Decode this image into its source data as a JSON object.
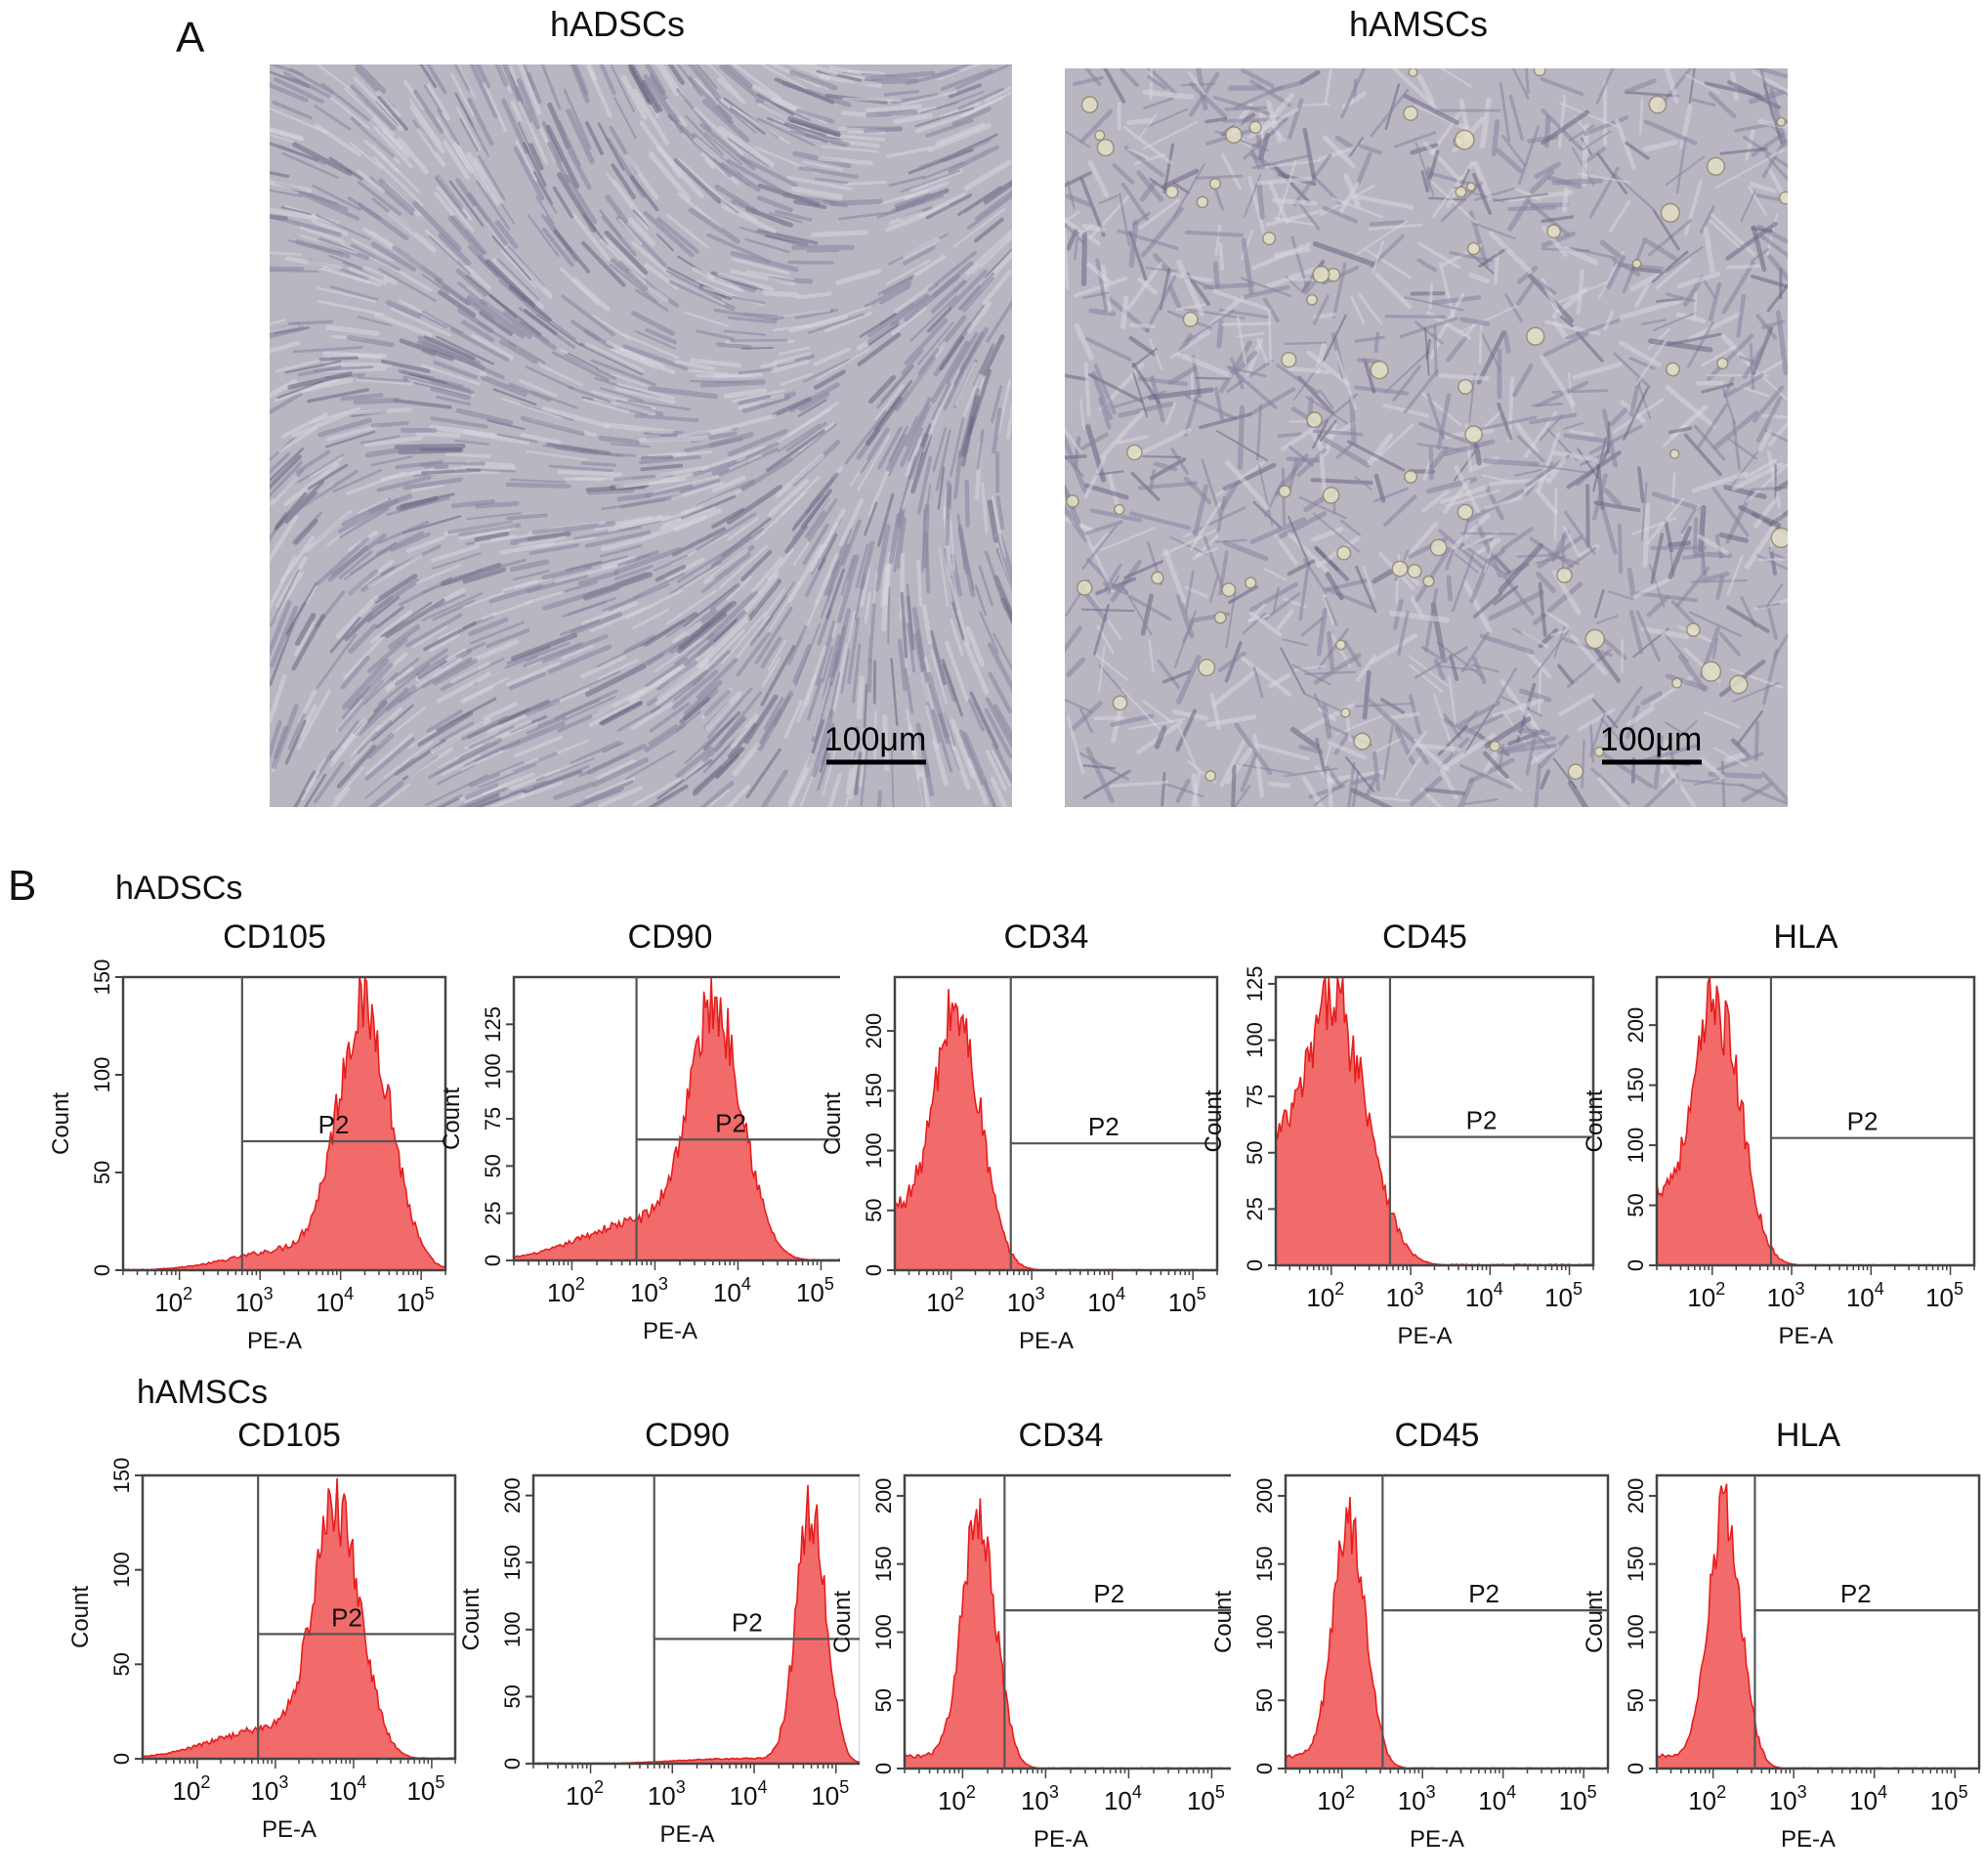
{
  "figure": {
    "panel_a_label": "A",
    "panel_b_label": "B"
  },
  "micrographs": [
    {
      "title": "hADSCs",
      "scale_bar": "100μm",
      "texture": "aligned"
    },
    {
      "title": "hAMSCs",
      "scale_bar": "100μm",
      "texture": "scattered"
    }
  ],
  "rows": [
    {
      "label": "hADSCs"
    },
    {
      "label": "hAMSCs"
    }
  ],
  "colors": {
    "histogram_fill": "#f26b6b",
    "histogram_edge": "#e61e1e",
    "axis": "#444444",
    "gate": "#555555"
  },
  "chart_data": [
    {
      "type": "area",
      "row": "hADSCs",
      "title": "CD105",
      "xlabel": "PE-A",
      "ylabel": "Count",
      "x_scale": "log",
      "xlim": [
        20,
        200000
      ],
      "ylim": [
        0,
        150
      ],
      "yticks": [
        0,
        50,
        100,
        150
      ],
      "xticks": [
        "10^2",
        "10^3",
        "10^4",
        "10^5"
      ],
      "gate_label": "P2",
      "gate_x": 600,
      "gate_y": 66,
      "peak_log": 4.3,
      "peak_height": 143,
      "spread": 0.33,
      "tail": 0.08
    },
    {
      "type": "area",
      "row": "hADSCs",
      "title": "CD90",
      "xlabel": "PE-A",
      "ylabel": "Count",
      "x_scale": "log",
      "xlim": [
        20,
        200000
      ],
      "ylim": [
        0,
        150
      ],
      "yticks": [
        0,
        25,
        50,
        75,
        100,
        125
      ],
      "xticks": [
        "10^2",
        "10^3",
        "10^4",
        "10^5"
      ],
      "gate_label": "P2",
      "gate_x": 600,
      "gate_y": 64,
      "peak_log": 3.75,
      "peak_height": 140,
      "spread": 0.32,
      "tail": 0.16
    },
    {
      "type": "area",
      "row": "hADSCs",
      "title": "CD34",
      "xlabel": "PE-A",
      "ylabel": "Count",
      "x_scale": "log",
      "xlim": [
        20,
        200000
      ],
      "ylim": [
        0,
        245
      ],
      "yticks": [
        0,
        50,
        100,
        150,
        200
      ],
      "xticks": [
        "10^2",
        "10^3",
        "10^4",
        "10^5"
      ],
      "gate_label": "P2",
      "gate_x": 550,
      "gate_y": 106,
      "peak_log": 2.1,
      "peak_height": 220,
      "spread": 0.28,
      "tail": 0.25
    },
    {
      "type": "area",
      "row": "hADSCs",
      "title": "CD45",
      "xlabel": "PE-A",
      "ylabel": "Count",
      "x_scale": "log",
      "xlim": [
        20,
        200000
      ],
      "ylim": [
        0,
        128
      ],
      "yticks": [
        0,
        25,
        50,
        75,
        100,
        125
      ],
      "xticks": [
        "10^2",
        "10^3",
        "10^4",
        "10^5"
      ],
      "gate_label": "P2",
      "gate_x": 550,
      "gate_y": 57,
      "peak_log": 2.15,
      "peak_height": 110,
      "spread": 0.36,
      "tail": 0.5
    },
    {
      "type": "area",
      "row": "hADSCs",
      "title": "HLA",
      "xlabel": "PE-A",
      "ylabel": "Count",
      "x_scale": "log",
      "xlim": [
        20,
        200000
      ],
      "ylim": [
        0,
        240
      ],
      "yticks": [
        0,
        50,
        100,
        150,
        200
      ],
      "xticks": [
        "10^2",
        "10^3",
        "10^4",
        "10^5"
      ],
      "gate_label": "P2",
      "gate_x": 550,
      "gate_y": 106,
      "peak_log": 2.1,
      "peak_height": 220,
      "spread": 0.28,
      "tail": 0.3
    },
    {
      "type": "area",
      "row": "hAMSCs",
      "title": "CD105",
      "xlabel": "PE-A",
      "ylabel": "Count",
      "x_scale": "log",
      "xlim": [
        20,
        200000
      ],
      "ylim": [
        0,
        150
      ],
      "yticks": [
        0,
        50,
        100,
        150
      ],
      "xticks": [
        "10^2",
        "10^3",
        "10^4",
        "10^5"
      ],
      "gate_label": "P2",
      "gate_x": 600,
      "gate_y": 66,
      "peak_log": 3.8,
      "peak_height": 140,
      "spread": 0.3,
      "tail": 0.12
    },
    {
      "type": "area",
      "row": "hAMSCs",
      "title": "CD90",
      "xlabel": "PE-A",
      "ylabel": "Count",
      "x_scale": "log",
      "xlim": [
        20,
        200000
      ],
      "ylim": [
        0,
        215
      ],
      "yticks": [
        0,
        50,
        100,
        150,
        200
      ],
      "xticks": [
        "10^2",
        "10^3",
        "10^4",
        "10^5"
      ],
      "gate_label": "P2",
      "gate_x": 600,
      "gate_y": 93,
      "peak_log": 4.7,
      "peak_height": 205,
      "spread": 0.18,
      "tail": 0.02
    },
    {
      "type": "area",
      "row": "hAMSCs",
      "title": "CD34",
      "xlabel": "PE-A",
      "ylabel": "Count",
      "x_scale": "log",
      "xlim": [
        20,
        200000
      ],
      "ylim": [
        0,
        215
      ],
      "yticks": [
        0,
        50,
        100,
        150,
        200
      ],
      "xticks": [
        "10^2",
        "10^3",
        "10^4",
        "10^5"
      ],
      "gate_label": "P2",
      "gate_x": 320,
      "gate_y": 116,
      "peak_log": 2.2,
      "peak_height": 200,
      "spread": 0.2,
      "tail": 0.05
    },
    {
      "type": "area",
      "row": "hAMSCs",
      "title": "CD45",
      "xlabel": "PE-A",
      "ylabel": "Count",
      "x_scale": "log",
      "xlim": [
        20,
        200000
      ],
      "ylim": [
        0,
        215
      ],
      "yticks": [
        0,
        50,
        100,
        150,
        200
      ],
      "xticks": [
        "10^2",
        "10^3",
        "10^4",
        "10^5"
      ],
      "gate_label": "P2",
      "gate_x": 320,
      "gate_y": 116,
      "peak_log": 2.1,
      "peak_height": 195,
      "spread": 0.2,
      "tail": 0.05
    },
    {
      "type": "area",
      "row": "hAMSCs",
      "title": "HLA",
      "xlabel": "PE-A",
      "ylabel": "Count",
      "x_scale": "log",
      "xlim": [
        20,
        200000
      ],
      "ylim": [
        0,
        215
      ],
      "yticks": [
        0,
        50,
        100,
        150,
        200
      ],
      "xticks": [
        "10^2",
        "10^3",
        "10^4",
        "10^5"
      ],
      "gate_label": "P2",
      "gate_x": 330,
      "gate_y": 116,
      "peak_log": 2.15,
      "peak_height": 200,
      "spread": 0.2,
      "tail": 0.05
    }
  ]
}
